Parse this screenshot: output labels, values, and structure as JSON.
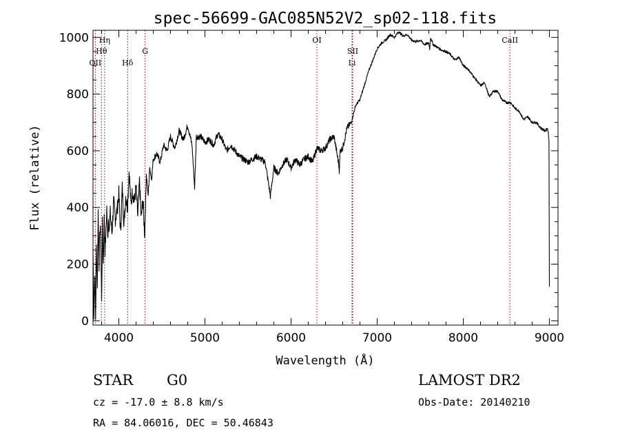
{
  "chart_data": {
    "type": "line",
    "title": "spec-56699-GAC085N52V2_sp02-118.fits",
    "xlabel": "Wavelength (Å)",
    "ylabel": "Flux (relative)",
    "xlim": [
      3700,
      9100
    ],
    "ylim": [
      -15,
      1025
    ],
    "xticks": [
      4000,
      5000,
      6000,
      7000,
      8000,
      9000
    ],
    "yticks": [
      0,
      200,
      400,
      600,
      800,
      1000
    ],
    "xtick_labels": [
      "4000",
      "5000",
      "6000",
      "7000",
      "8000",
      "9000"
    ],
    "ytick_labels": [
      "0",
      "200",
      "400",
      "600",
      "800",
      "1000"
    ],
    "line_color": "#000000",
    "marker_color": "#8b0000",
    "line_markers": [
      {
        "name": "oii",
        "label": "OII",
        "wavelength": 3727,
        "row": 3
      },
      {
        "name": "h-eta",
        "label": "Hη",
        "wavelength": 3835,
        "row": 1
      },
      {
        "name": "h-theta",
        "label": "Hθ",
        "wavelength": 3798,
        "row": 2
      },
      {
        "name": "h-delta",
        "label": "Hδ",
        "wavelength": 4102,
        "row": 3
      },
      {
        "name": "g-band",
        "label": "G",
        "wavelength": 4305,
        "row": 2
      },
      {
        "name": "oi",
        "label": "OI",
        "wavelength": 6300,
        "row": 1
      },
      {
        "name": "sii",
        "label": "SII",
        "wavelength": 6716,
        "row": 2
      },
      {
        "name": "li",
        "label": "Li",
        "wavelength": 6708,
        "row": 3
      },
      {
        "name": "caii",
        "label": "CaII",
        "wavelength": 8542,
        "row": 1
      }
    ],
    "series": [
      {
        "name": "flux",
        "x": [
          3700,
          3710,
          3720,
          3730,
          3740,
          3750,
          3760,
          3770,
          3780,
          3790,
          3800,
          3810,
          3820,
          3830,
          3840,
          3850,
          3860,
          3870,
          3880,
          3890,
          3900,
          3920,
          3940,
          3960,
          3980,
          4000,
          4020,
          4040,
          4060,
          4080,
          4100,
          4120,
          4140,
          4160,
          4180,
          4200,
          4220,
          4240,
          4260,
          4280,
          4300,
          4320,
          4340,
          4360,
          4380,
          4400,
          4440,
          4480,
          4520,
          4560,
          4600,
          4650,
          4700,
          4750,
          4800,
          4850,
          4880,
          4900,
          4950,
          5000,
          5050,
          5100,
          5150,
          5200,
          5250,
          5300,
          5400,
          5500,
          5600,
          5700,
          5760,
          5800,
          5850,
          5900,
          5950,
          6000,
          6050,
          6100,
          6150,
          6200,
          6250,
          6300,
          6350,
          6400,
          6450,
          6500,
          6550,
          6560,
          6570,
          6600,
          6650,
          6700,
          6750,
          6800,
          6850,
          6900,
          6950,
          7000,
          7050,
          7100,
          7150,
          7200,
          7250,
          7300,
          7350,
          7400,
          7450,
          7500,
          7550,
          7600,
          7610,
          7620,
          7650,
          7700,
          7750,
          7800,
          7850,
          7900,
          7950,
          8000,
          8050,
          8100,
          8150,
          8200,
          8250,
          8300,
          8350,
          8400,
          8450,
          8500,
          8550,
          8600,
          8650,
          8700,
          8750,
          8800,
          8850,
          8900,
          8950,
          8980,
          8995,
          9000
        ],
        "y": [
          250,
          20,
          180,
          10,
          260,
          130,
          390,
          200,
          330,
          300,
          60,
          340,
          200,
          360,
          250,
          310,
          400,
          290,
          360,
          330,
          380,
          310,
          420,
          360,
          390,
          450,
          310,
          470,
          340,
          440,
          400,
          530,
          410,
          460,
          420,
          470,
          370,
          490,
          360,
          430,
          300,
          520,
          440,
          540,
          500,
          570,
          590,
          560,
          620,
          600,
          650,
          610,
          670,
          640,
          690,
          620,
          470,
          650,
          650,
          630,
          640,
          620,
          660,
          640,
          600,
          620,
          580,
          560,
          580,
          560,
          440,
          540,
          520,
          550,
          570,
          540,
          570,
          550,
          570,
          580,
          560,
          610,
          600,
          610,
          640,
          650,
          560,
          530,
          600,
          610,
          680,
          700,
          760,
          780,
          830,
          880,
          920,
          960,
          980,
          990,
          1010,
          1000,
          1020,
          1005,
          1010,
          990,
          985,
          990,
          975,
          980,
          960,
          1000,
          975,
          965,
          955,
          950,
          940,
          920,
          930,
          900,
          890,
          870,
          850,
          830,
          840,
          790,
          810,
          810,
          780,
          770,
          770,
          750,
          740,
          710,
          720,
          700,
          700,
          680,
          670,
          680,
          640,
          120
        ]
      }
    ]
  },
  "info": {
    "object_class": "STAR",
    "subclass": "G0",
    "survey": "LAMOST DR2",
    "redshift_line": "cz = -17.0 ± 8.8 km/s",
    "obs_date_line": "Obs-Date: 20140210",
    "coords_line": "RA =  84.06016, DEC =  50.46843"
  }
}
